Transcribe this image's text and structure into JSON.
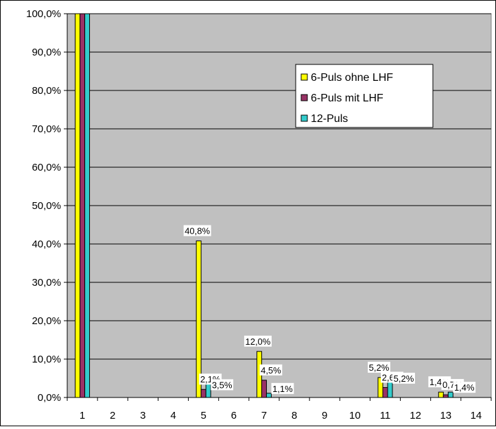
{
  "chart_data": {
    "type": "bar",
    "categories": [
      "1",
      "2",
      "3",
      "4",
      "5",
      "6",
      "7",
      "8",
      "9",
      "10",
      "11",
      "12",
      "13",
      "14"
    ],
    "series": [
      {
        "name": "6-Puls ohne LHF",
        "color": "#ffff00",
        "values": [
          100,
          null,
          null,
          null,
          40.8,
          null,
          12.0,
          null,
          null,
          null,
          5.2,
          null,
          1.4,
          null
        ],
        "labels": [
          null,
          null,
          null,
          null,
          "40,8%",
          null,
          "12,0%",
          null,
          null,
          null,
          "5,2%",
          null,
          "1,4%",
          null
        ]
      },
      {
        "name": "6-Puls mit LHF",
        "color": "#993366",
        "values": [
          100,
          null,
          null,
          null,
          2.1,
          null,
          4.5,
          null,
          null,
          null,
          2.6,
          null,
          0.7,
          null
        ],
        "labels": [
          null,
          null,
          null,
          null,
          "2,1%",
          null,
          "4,5%",
          null,
          null,
          null,
          "2,6%",
          null,
          "0,7%",
          null
        ]
      },
      {
        "name": "12-Puls",
        "color": "#33cccc",
        "values": [
          100,
          null,
          null,
          null,
          3.5,
          null,
          1.1,
          null,
          null,
          null,
          5.2,
          null,
          1.4,
          null
        ],
        "labels": [
          null,
          null,
          null,
          null,
          "3,5%",
          null,
          "1,1%",
          null,
          null,
          null,
          "5,2%",
          null,
          "1,4%",
          null
        ]
      }
    ],
    "y_ticks": [
      "0,0%",
      "10,0%",
      "20,0%",
      "30,0%",
      "40,0%",
      "50,0%",
      "60,0%",
      "70,0%",
      "80,0%",
      "90,0%",
      "100,0%"
    ],
    "ylim": [
      0,
      100
    ],
    "grid": true,
    "legend": "upper-right-inside",
    "plot_background": "#c0c0c0",
    "title": "",
    "xlabel": "",
    "ylabel": ""
  }
}
